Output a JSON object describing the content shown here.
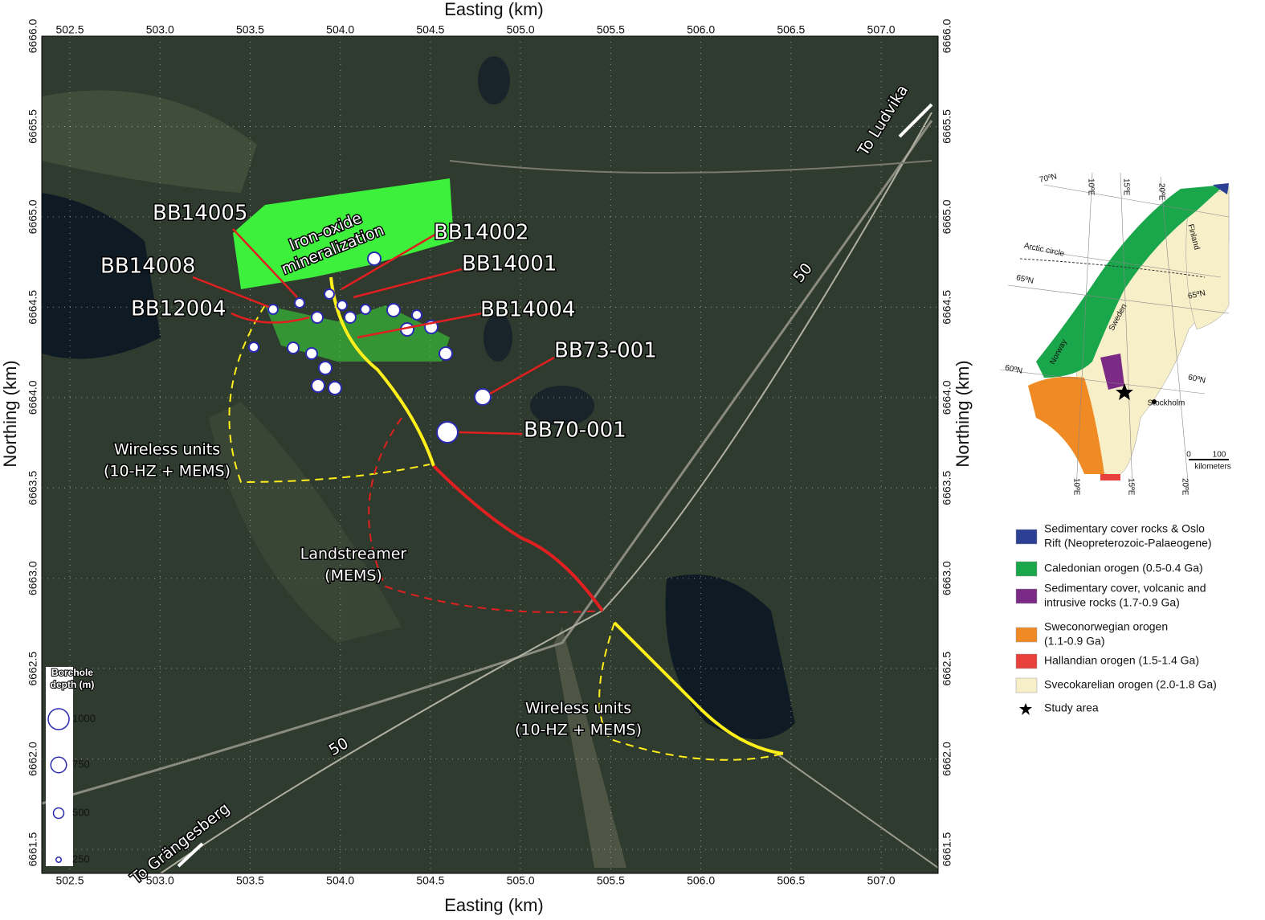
{
  "map": {
    "x_label": "Easting (km)",
    "y_label": "Northing (km)",
    "xlim": [
      502.344,
      507.316
    ],
    "ylim": [
      6661.367,
      6666.0
    ],
    "xticks": [
      {
        "value": 502.5,
        "label": "502.5"
      },
      {
        "value": 503,
        "label": "503.0"
      },
      {
        "value": 503.5,
        "label": "503.5"
      },
      {
        "value": 504,
        "label": "504.0"
      },
      {
        "value": 504.5,
        "label": "504.5"
      },
      {
        "value": 505,
        "label": "505.0"
      },
      {
        "value": 505.5,
        "label": "505.5"
      },
      {
        "value": 506,
        "label": "506.0"
      },
      {
        "value": 506.5,
        "label": "506.5"
      },
      {
        "value": 507,
        "label": "507.0"
      }
    ],
    "yticks": [
      {
        "value": 6661.5,
        "label": "6661.5"
      },
      {
        "value": 6662,
        "label": "6662.0"
      },
      {
        "value": 6662.5,
        "label": "6662.5"
      },
      {
        "value": 6663,
        "label": "6663.0"
      },
      {
        "value": 6663.5,
        "label": "6663.5"
      },
      {
        "value": 6664,
        "label": "6664.0"
      },
      {
        "value": 6664.5,
        "label": "6664.5"
      },
      {
        "value": 6665,
        "label": "6665.0"
      },
      {
        "value": 6665.5,
        "label": "6665.5"
      },
      {
        "value": 6666,
        "label": "6666.0"
      }
    ],
    "grid": true,
    "boreholes": [
      "BB14005",
      "BB14008",
      "BB12004",
      "BB14002",
      "BB14001",
      "BB14004",
      "BB73-001",
      "BB70-001"
    ],
    "mineralization": [
      "Iron-oxide",
      "mineralization"
    ],
    "wireless_north": [
      "Wireless units",
      "(10-HZ + MEMS)"
    ],
    "landstreamer": [
      "Landstreamer",
      "(MEMS)"
    ],
    "wireless_south": [
      "Wireless units",
      "(10-HZ + MEMS)"
    ],
    "to_ludvika": "To Ludvika",
    "to_grangesberg": "To Grängesberg",
    "road_labels": [
      "50",
      "50"
    ],
    "depth_legend": {
      "title": [
        "Borehole",
        "depth (m)"
      ],
      "values": [
        1000,
        750,
        500,
        250
      ],
      "color": "#2a2ab0"
    }
  },
  "inset": {
    "labels": [
      "70ºN",
      "10ºE",
      "15ºE",
      "20ºE",
      "Finland",
      "Arctic circle",
      "65ºN",
      "65ºN",
      "Sweden",
      "Norway",
      "60ºN",
      "60ºN",
      "Stockholm",
      "10ºE",
      "15ºE",
      "20ºE"
    ],
    "scale": [
      "0",
      "100",
      "kilometers"
    ]
  },
  "legend": [
    {
      "label": [
        "Sedimentary cover rocks & Oslo",
        "Rift (Neopreterozoic-Palaeogene)"
      ],
      "color": "#2b3f95"
    },
    {
      "label": [
        "Caledonian orogen (0.5-0.4 Ga)"
      ],
      "color": "#1aa64a"
    },
    {
      "label": [
        "Sedimentary cover, volcanic and",
        "intrusive rocks (1.7-0.9 Ga)"
      ],
      "color": "#7b2a85"
    },
    {
      "label": [
        "Sweconorwegian orogen",
        "(1.1-0.9 Ga)"
      ],
      "color": "#f08a24"
    },
    {
      "label": [
        "Hallandian orogen (1.5-1.4 Ga)"
      ],
      "color": "#e8413c"
    },
    {
      "label": [
        "Svecokarelian orogen (2.0-1.8 Ga)"
      ],
      "color": "#f7efc8"
    },
    {
      "label": [
        "Study area"
      ],
      "color": "#000000"
    }
  ]
}
